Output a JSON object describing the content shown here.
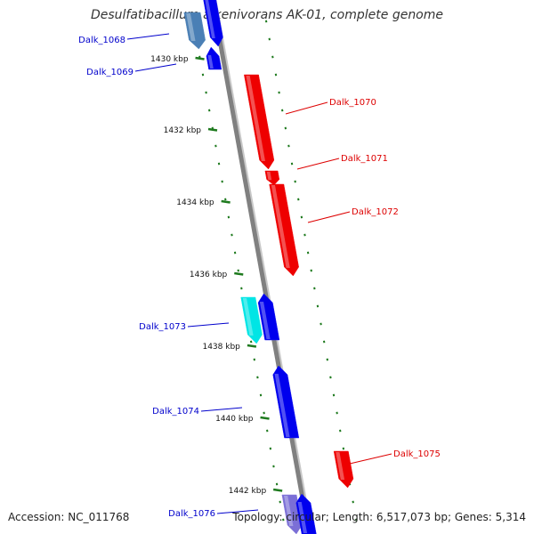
{
  "title": "Desulfatibacillum alkenivorans AK-01, complete genome",
  "accession": "Accession: NC_011768",
  "summary": "Topology: circular; Length: 6,517,073 bp; Genes: 5,314",
  "colors": {
    "backbone": "#808080",
    "tick": "#1e7a1e",
    "forward_label": "#0000cc",
    "reverse_label": "#dd0000",
    "blue": "#0000ee",
    "red": "#ee0000",
    "steel_blue": "#4a7fb5",
    "cyan": "#00e5e5",
    "lavender": "#7b6fd6"
  },
  "ticks": [
    {
      "label": "1430 kbp"
    },
    {
      "label": "1432 kbp"
    },
    {
      "label": "1434 kbp"
    },
    {
      "label": "1436 kbp"
    },
    {
      "label": "1438 kbp"
    },
    {
      "label": "1440 kbp"
    },
    {
      "label": "1442 kbp"
    }
  ],
  "genes": [
    {
      "label": "Dalk_1068",
      "strand": "forward",
      "color": "steel_blue"
    },
    {
      "label": "Dalk_1069",
      "strand": "forward",
      "color": "blue"
    },
    {
      "label": "Dalk_1070",
      "strand": "reverse",
      "color": "red"
    },
    {
      "label": "Dalk_1071",
      "strand": "reverse",
      "color": "red"
    },
    {
      "label": "Dalk_1072",
      "strand": "reverse",
      "color": "red"
    },
    {
      "label": "Dalk_1073",
      "strand": "forward",
      "color": "cyan"
    },
    {
      "label": "Dalk_1074",
      "strand": "forward",
      "color": "blue"
    },
    {
      "label": "Dalk_1075",
      "strand": "reverse",
      "color": "red"
    },
    {
      "label": "Dalk_1076",
      "strand": "forward",
      "color": "lavender"
    }
  ]
}
